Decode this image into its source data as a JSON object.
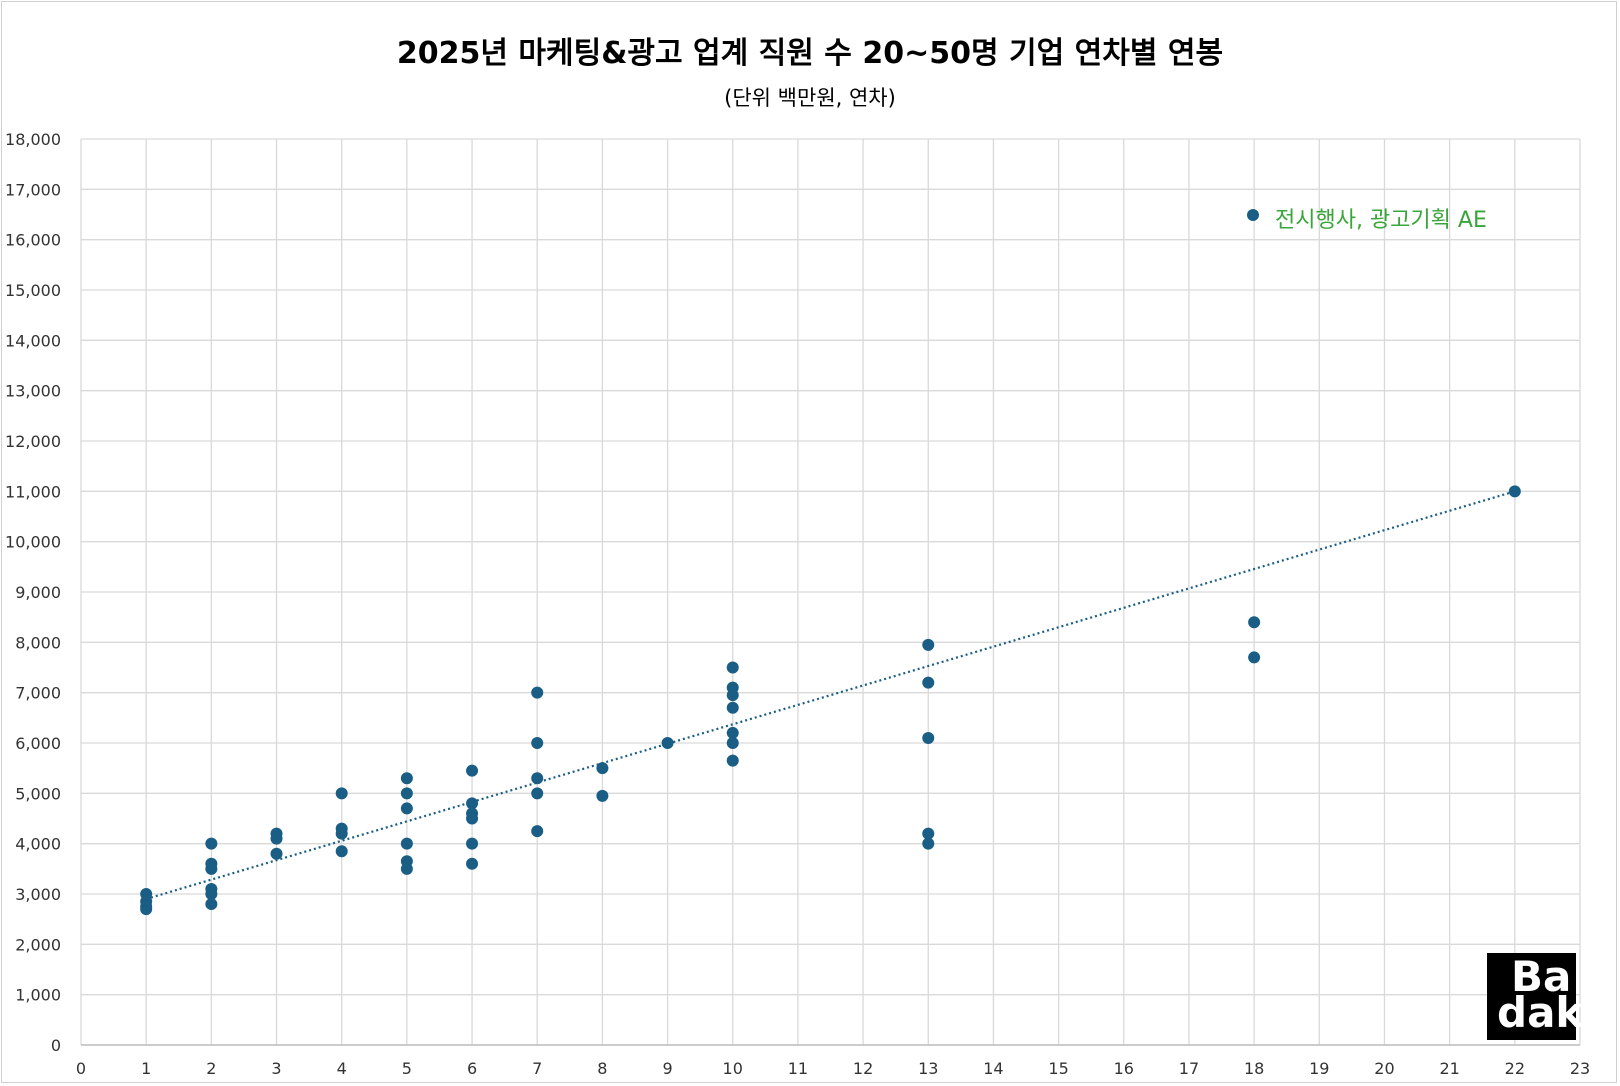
{
  "chart_data": {
    "type": "scatter",
    "title": "2025년 마케팅&광고 업계 직원 수 20~50명 기업 연차별 연봉",
    "subtitle": "(단위 백만원, 연차)",
    "xlim": [
      0,
      23
    ],
    "ylim": [
      0,
      18000
    ],
    "x_ticks": [
      "0",
      "1",
      "2",
      "3",
      "4",
      "5",
      "6",
      "7",
      "8",
      "9",
      "10",
      "11",
      "12",
      "13",
      "14",
      "15",
      "16",
      "17",
      "18",
      "19",
      "20",
      "21",
      "22",
      "23"
    ],
    "y_ticks": [
      "0",
      "1,000",
      "2,000",
      "3,000",
      "4,000",
      "5,000",
      "6,000",
      "7,000",
      "8,000",
      "9,000",
      "10,000",
      "11,000",
      "12,000",
      "13,000",
      "14,000",
      "15,000",
      "16,000",
      "17,000",
      "18,000"
    ],
    "grid": true,
    "trendline": {
      "type": "linear",
      "style": "dotted",
      "x_range": [
        1,
        22
      ],
      "y_start": 2900,
      "y_end": 11000
    },
    "legend_position": "top-right",
    "series": [
      {
        "name": "전시행사, 광고기획 AE",
        "color": "#1b5e85",
        "points": [
          [
            1,
            3000
          ],
          [
            1,
            2850
          ],
          [
            1,
            2750
          ],
          [
            1,
            2700
          ],
          [
            2,
            4000
          ],
          [
            2,
            3600
          ],
          [
            2,
            3500
          ],
          [
            2,
            3100
          ],
          [
            2,
            3000
          ],
          [
            2,
            2800
          ],
          [
            3,
            4200
          ],
          [
            3,
            4100
          ],
          [
            3,
            3800
          ],
          [
            4,
            5000
          ],
          [
            4,
            4300
          ],
          [
            4,
            4200
          ],
          [
            4,
            3850
          ],
          [
            5,
            5300
          ],
          [
            5,
            5000
          ],
          [
            5,
            4700
          ],
          [
            5,
            4000
          ],
          [
            5,
            3650
          ],
          [
            5,
            3500
          ],
          [
            6,
            5450
          ],
          [
            6,
            4800
          ],
          [
            6,
            4600
          ],
          [
            6,
            4500
          ],
          [
            6,
            4000
          ],
          [
            6,
            3600
          ],
          [
            7,
            7000
          ],
          [
            7,
            6000
          ],
          [
            7,
            5300
          ],
          [
            7,
            5000
          ],
          [
            7,
            4250
          ],
          [
            8,
            5500
          ],
          [
            8,
            4950
          ],
          [
            9,
            6000
          ],
          [
            10,
            7500
          ],
          [
            10,
            7100
          ],
          [
            10,
            6950
          ],
          [
            10,
            6700
          ],
          [
            10,
            6200
          ],
          [
            10,
            6000
          ],
          [
            10,
            5650
          ],
          [
            13,
            7950
          ],
          [
            13,
            7200
          ],
          [
            13,
            6100
          ],
          [
            13,
            4200
          ],
          [
            13,
            4000
          ],
          [
            18,
            8400
          ],
          [
            18,
            7700
          ],
          [
            22,
            11000
          ]
        ]
      }
    ]
  },
  "legend": {
    "label": "전시행사, 광고기획 AE",
    "color": "#3aa53a"
  },
  "logo": {
    "line1": "Ba",
    "line2": "dak"
  },
  "colors": {
    "marker": "#1b5e85",
    "grid": "#d9d9d9",
    "legend_text": "#3aa53a"
  }
}
